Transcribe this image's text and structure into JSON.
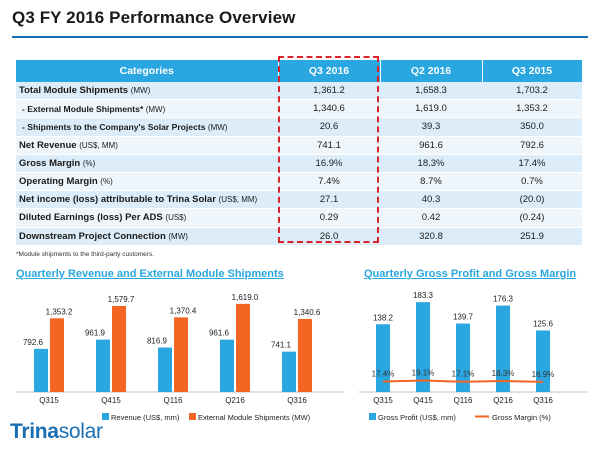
{
  "page_title": "Q3 FY 2016 Performance Overview",
  "table": {
    "headers": [
      "Categories",
      "Q3 2016",
      "Q2 2016",
      "Q3 2015"
    ],
    "rows": [
      {
        "label": "Total Module Shipments",
        "unit": "(MW)",
        "values": [
          "1,361.2",
          "1,658.3",
          "1,703.2"
        ]
      },
      {
        "label": "- External Module Shipments*",
        "unit": "(MW)",
        "values": [
          "1,340.6",
          "1,619.0",
          "1,353.2"
        ]
      },
      {
        "label": "- Shipments to the Company's Solar Projects",
        "unit": "(MW)",
        "values": [
          "20.6",
          "39.3",
          "350.0"
        ]
      },
      {
        "label": "Net Revenue",
        "unit": "(US$, MM)",
        "values": [
          "741.1",
          "961.6",
          "792.6"
        ]
      },
      {
        "label": "Gross Margin",
        "unit": "(%)",
        "values": [
          "16.9%",
          "18.3%",
          "17.4%"
        ]
      },
      {
        "label": "Operating Margin",
        "unit": "(%)",
        "values": [
          "7.4%",
          "8.7%",
          "0.7%"
        ]
      },
      {
        "label": "Net income (loss) attributable to Trina Solar",
        "unit": "(US$, MM)",
        "values": [
          "27.1",
          "40.3",
          "(20.0)"
        ]
      },
      {
        "label": "Diluted Earnings (loss) Per ADS",
        "unit": "(US$)",
        "values": [
          "0.29",
          "0.42",
          "(0.24)"
        ]
      },
      {
        "label": "Downstream Project Connection",
        "unit": "(MW)",
        "values": [
          "26.0",
          "320.8",
          "251.9"
        ]
      }
    ]
  },
  "footnote": "*Module shipments to the third-party customers.",
  "logo": {
    "part1": "Trina",
    "part2": "solar"
  },
  "colors": {
    "blue": "#2aa6e0",
    "orange": "#f26522",
    "red": "#d9232a",
    "brand": "#1a6fb3"
  },
  "chart_data": [
    {
      "type": "bar",
      "title": "Quarterly Revenue and External  Module Shipments",
      "categories": [
        "Q315",
        "Q415",
        "Q116",
        "Q216",
        "Q316"
      ],
      "series": [
        {
          "name": "Revenue (US$, mm)",
          "values": [
            792.6,
            961.9,
            816.9,
            961.6,
            741.1
          ],
          "labels": [
            "792.6",
            "961.9",
            "816.9",
            "961.6",
            "741.1"
          ]
        },
        {
          "name": "External Module Shipments (MW)",
          "values": [
            1353.2,
            1579.7,
            1370.4,
            1619.0,
            1340.6
          ],
          "labels": [
            "1,353.2",
            "1,579.7",
            "1,370.4",
            "1,619.0",
            "1,340.6"
          ]
        }
      ],
      "legend": "bottom"
    },
    {
      "type": "bar",
      "title": "Quarterly Gross Profit and Gross Margin",
      "categories": [
        "Q315",
        "Q415",
        "Q116",
        "Q216",
        "Q316"
      ],
      "series": [
        {
          "name": "Gross Profit (US$, mm)",
          "values": [
            138.2,
            183.3,
            139.7,
            176.3,
            125.6
          ],
          "labels": [
            "138.2",
            "183.3",
            "139.7",
            "176.3",
            "125.6"
          ]
        },
        {
          "name": "Gross Margin (%)",
          "type": "line",
          "values": [
            17.4,
            19.1,
            17.1,
            18.3,
            16.9
          ],
          "labels": [
            "17.4%",
            "19.1%",
            "17.1%",
            "18.3%",
            "16.9%"
          ]
        }
      ],
      "legend": "bottom"
    }
  ]
}
